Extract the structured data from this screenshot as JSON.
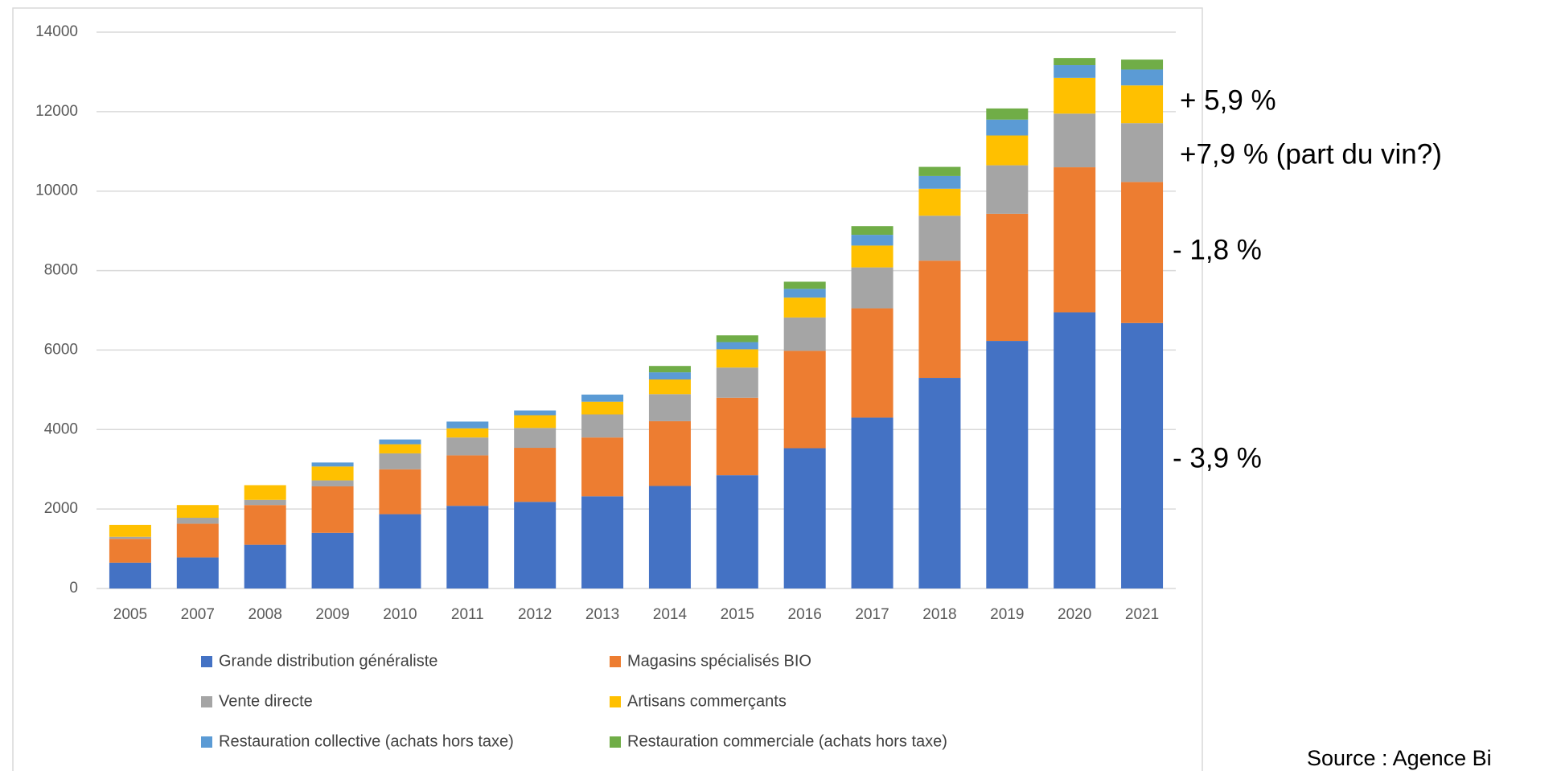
{
  "chart_data": {
    "type": "stacked_bar",
    "categories": [
      "2005",
      "2007",
      "2008",
      "2009",
      "2010",
      "2011",
      "2012",
      "2013",
      "2014",
      "2015",
      "2016",
      "2017",
      "2018",
      "2019",
      "2020",
      "2021"
    ],
    "series": [
      {
        "name": "Grande distribution généraliste",
        "color": "#4472c4",
        "values": [
          650,
          780,
          1100,
          1400,
          1870,
          2080,
          2180,
          2320,
          2580,
          2850,
          3530,
          4300,
          5300,
          6230,
          6950,
          6680
        ]
      },
      {
        "name": "Magasins spécialisés BIO",
        "color": "#ed7d31",
        "values": [
          600,
          850,
          1000,
          1170,
          1130,
          1270,
          1360,
          1480,
          1630,
          1950,
          2450,
          2750,
          2950,
          3200,
          3650,
          3550
        ]
      },
      {
        "name": "Vente directe",
        "color": "#a5a5a5",
        "values": [
          50,
          150,
          130,
          150,
          400,
          450,
          500,
          580,
          680,
          760,
          840,
          1030,
          1130,
          1220,
          1350,
          1480
        ]
      },
      {
        "name": "Artisans commerçants",
        "color": "#ffc000",
        "values": [
          300,
          320,
          370,
          350,
          230,
          230,
          320,
          320,
          370,
          460,
          500,
          550,
          680,
          750,
          900,
          950
        ]
      },
      {
        "name": "Restauration collective (achats hors taxe)",
        "color": "#5b9bd5",
        "values": [
          0,
          0,
          0,
          100,
          120,
          170,
          120,
          180,
          180,
          180,
          220,
          270,
          320,
          400,
          320,
          400
        ]
      },
      {
        "name": "Restauration commerciale (achats hors taxe)",
        "color": "#70ad47",
        "values": [
          0,
          0,
          0,
          0,
          0,
          0,
          0,
          0,
          160,
          170,
          180,
          220,
          230,
          280,
          180,
          250
        ]
      }
    ],
    "ylim": [
      0,
      14000
    ],
    "yticks": [
      0,
      2000,
      4000,
      6000,
      8000,
      10000,
      12000,
      14000
    ],
    "grid": true,
    "annotations": [
      "+ 5,9 %",
      "+7,9 % (part du vin?)",
      "- 1,8 %",
      "- 3,9 %",
      "Source : Agence Bi"
    ]
  }
}
